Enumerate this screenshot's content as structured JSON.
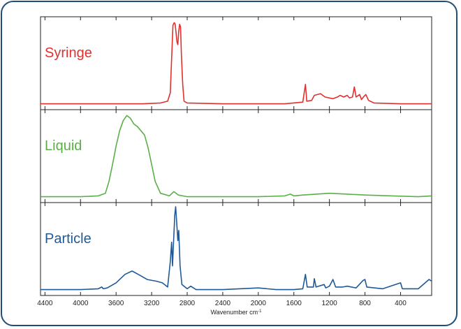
{
  "chart_data": {
    "type": "line",
    "xlabel": "Wavenumber cm",
    "xlabel_sup": "-1",
    "xlim": [
      4450,
      50
    ],
    "x_reversed": true,
    "x_ticks": [
      4400,
      4000,
      3600,
      3200,
      2800,
      2400,
      2000,
      1600,
      1200,
      800,
      400
    ],
    "x_tick_labels": [
      "4400",
      "4000",
      "3600",
      "3200",
      "2800",
      "2400",
      "2000",
      "1600",
      "1200",
      "800",
      "400"
    ],
    "grid": false,
    "legend": "none",
    "panels": [
      {
        "name": "Syringe",
        "color": "#e03030",
        "ylim": [
          0,
          1
        ],
        "points": [
          [
            4450,
            0.02
          ],
          [
            4000,
            0.02
          ],
          [
            3600,
            0.02
          ],
          [
            3300,
            0.02
          ],
          [
            3100,
            0.03
          ],
          [
            3020,
            0.05
          ],
          [
            2990,
            0.15
          ],
          [
            2975,
            0.55
          ],
          [
            2960,
            0.95
          ],
          [
            2945,
            0.98
          ],
          [
            2935,
            0.96
          ],
          [
            2915,
            0.75
          ],
          [
            2905,
            0.72
          ],
          [
            2895,
            0.88
          ],
          [
            2885,
            0.96
          ],
          [
            2875,
            0.93
          ],
          [
            2865,
            0.6
          ],
          [
            2850,
            0.25
          ],
          [
            2835,
            0.05
          ],
          [
            2800,
            0.03
          ],
          [
            2400,
            0.02
          ],
          [
            2000,
            0.02
          ],
          [
            1700,
            0.02
          ],
          [
            1500,
            0.04
          ],
          [
            1470,
            0.25
          ],
          [
            1455,
            0.05
          ],
          [
            1400,
            0.06
          ],
          [
            1370,
            0.12
          ],
          [
            1300,
            0.14
          ],
          [
            1250,
            0.1
          ],
          [
            1160,
            0.08
          ],
          [
            1110,
            0.1
          ],
          [
            1080,
            0.12
          ],
          [
            1040,
            0.1
          ],
          [
            1000,
            0.12
          ],
          [
            975,
            0.09
          ],
          [
            940,
            0.1
          ],
          [
            920,
            0.22
          ],
          [
            900,
            0.1
          ],
          [
            860,
            0.13
          ],
          [
            840,
            0.07
          ],
          [
            810,
            0.11
          ],
          [
            790,
            0.13
          ],
          [
            760,
            0.06
          ],
          [
            700,
            0.03
          ],
          [
            400,
            0.02
          ],
          [
            50,
            0.02
          ]
        ]
      },
      {
        "name": "Liquid",
        "color": "#5aaf46",
        "ylim": [
          0,
          1
        ],
        "points": [
          [
            4450,
            0.02
          ],
          [
            4000,
            0.02
          ],
          [
            3800,
            0.03
          ],
          [
            3720,
            0.06
          ],
          [
            3680,
            0.2
          ],
          [
            3640,
            0.4
          ],
          [
            3600,
            0.62
          ],
          [
            3560,
            0.8
          ],
          [
            3520,
            0.92
          ],
          [
            3480,
            0.98
          ],
          [
            3440,
            0.95
          ],
          [
            3400,
            0.88
          ],
          [
            3360,
            0.85
          ],
          [
            3320,
            0.8
          ],
          [
            3280,
            0.75
          ],
          [
            3240,
            0.6
          ],
          [
            3200,
            0.4
          ],
          [
            3160,
            0.2
          ],
          [
            3100,
            0.06
          ],
          [
            3000,
            0.03
          ],
          [
            2950,
            0.08
          ],
          [
            2900,
            0.04
          ],
          [
            2800,
            0.02
          ],
          [
            2400,
            0.02
          ],
          [
            2000,
            0.02
          ],
          [
            1700,
            0.03
          ],
          [
            1640,
            0.05
          ],
          [
            1600,
            0.03
          ],
          [
            1500,
            0.04
          ],
          [
            1200,
            0.06
          ],
          [
            1000,
            0.05
          ],
          [
            800,
            0.04
          ],
          [
            500,
            0.03
          ],
          [
            200,
            0.02
          ],
          [
            50,
            0.03
          ]
        ]
      },
      {
        "name": "Particle",
        "color": "#1f5a96",
        "ylim": [
          0,
          1
        ],
        "points": [
          [
            4450,
            0.02
          ],
          [
            4000,
            0.02
          ],
          [
            3800,
            0.03
          ],
          [
            3760,
            0.05
          ],
          [
            3745,
            0.03
          ],
          [
            3700,
            0.04
          ],
          [
            3600,
            0.1
          ],
          [
            3500,
            0.2
          ],
          [
            3420,
            0.24
          ],
          [
            3350,
            0.2
          ],
          [
            3250,
            0.14
          ],
          [
            3150,
            0.12
          ],
          [
            3080,
            0.1
          ],
          [
            3020,
            0.05
          ],
          [
            2990,
            0.35
          ],
          [
            2975,
            0.58
          ],
          [
            2965,
            0.3
          ],
          [
            2955,
            0.55
          ],
          [
            2940,
            0.9
          ],
          [
            2930,
            1.0
          ],
          [
            2920,
            0.85
          ],
          [
            2905,
            0.6
          ],
          [
            2895,
            0.72
          ],
          [
            2880,
            0.3
          ],
          [
            2860,
            0.08
          ],
          [
            2800,
            0.03
          ],
          [
            2760,
            0.06
          ],
          [
            2700,
            0.02
          ],
          [
            2400,
            0.02
          ],
          [
            2000,
            0.04
          ],
          [
            1800,
            0.02
          ],
          [
            1600,
            0.02
          ],
          [
            1500,
            0.03
          ],
          [
            1470,
            0.2
          ],
          [
            1450,
            0.05
          ],
          [
            1380,
            0.05
          ],
          [
            1370,
            0.15
          ],
          [
            1350,
            0.05
          ],
          [
            1260,
            0.08
          ],
          [
            1240,
            0.04
          ],
          [
            1200,
            0.06
          ],
          [
            1160,
            0.14
          ],
          [
            1130,
            0.05
          ],
          [
            1050,
            0.05
          ],
          [
            1000,
            0.06
          ],
          [
            900,
            0.04
          ],
          [
            820,
            0.13
          ],
          [
            800,
            0.14
          ],
          [
            780,
            0.05
          ],
          [
            600,
            0.03
          ],
          [
            400,
            0.1
          ],
          [
            380,
            0.03
          ],
          [
            200,
            0.03
          ],
          [
            80,
            0.14
          ],
          [
            50,
            0.12
          ]
        ]
      }
    ]
  }
}
